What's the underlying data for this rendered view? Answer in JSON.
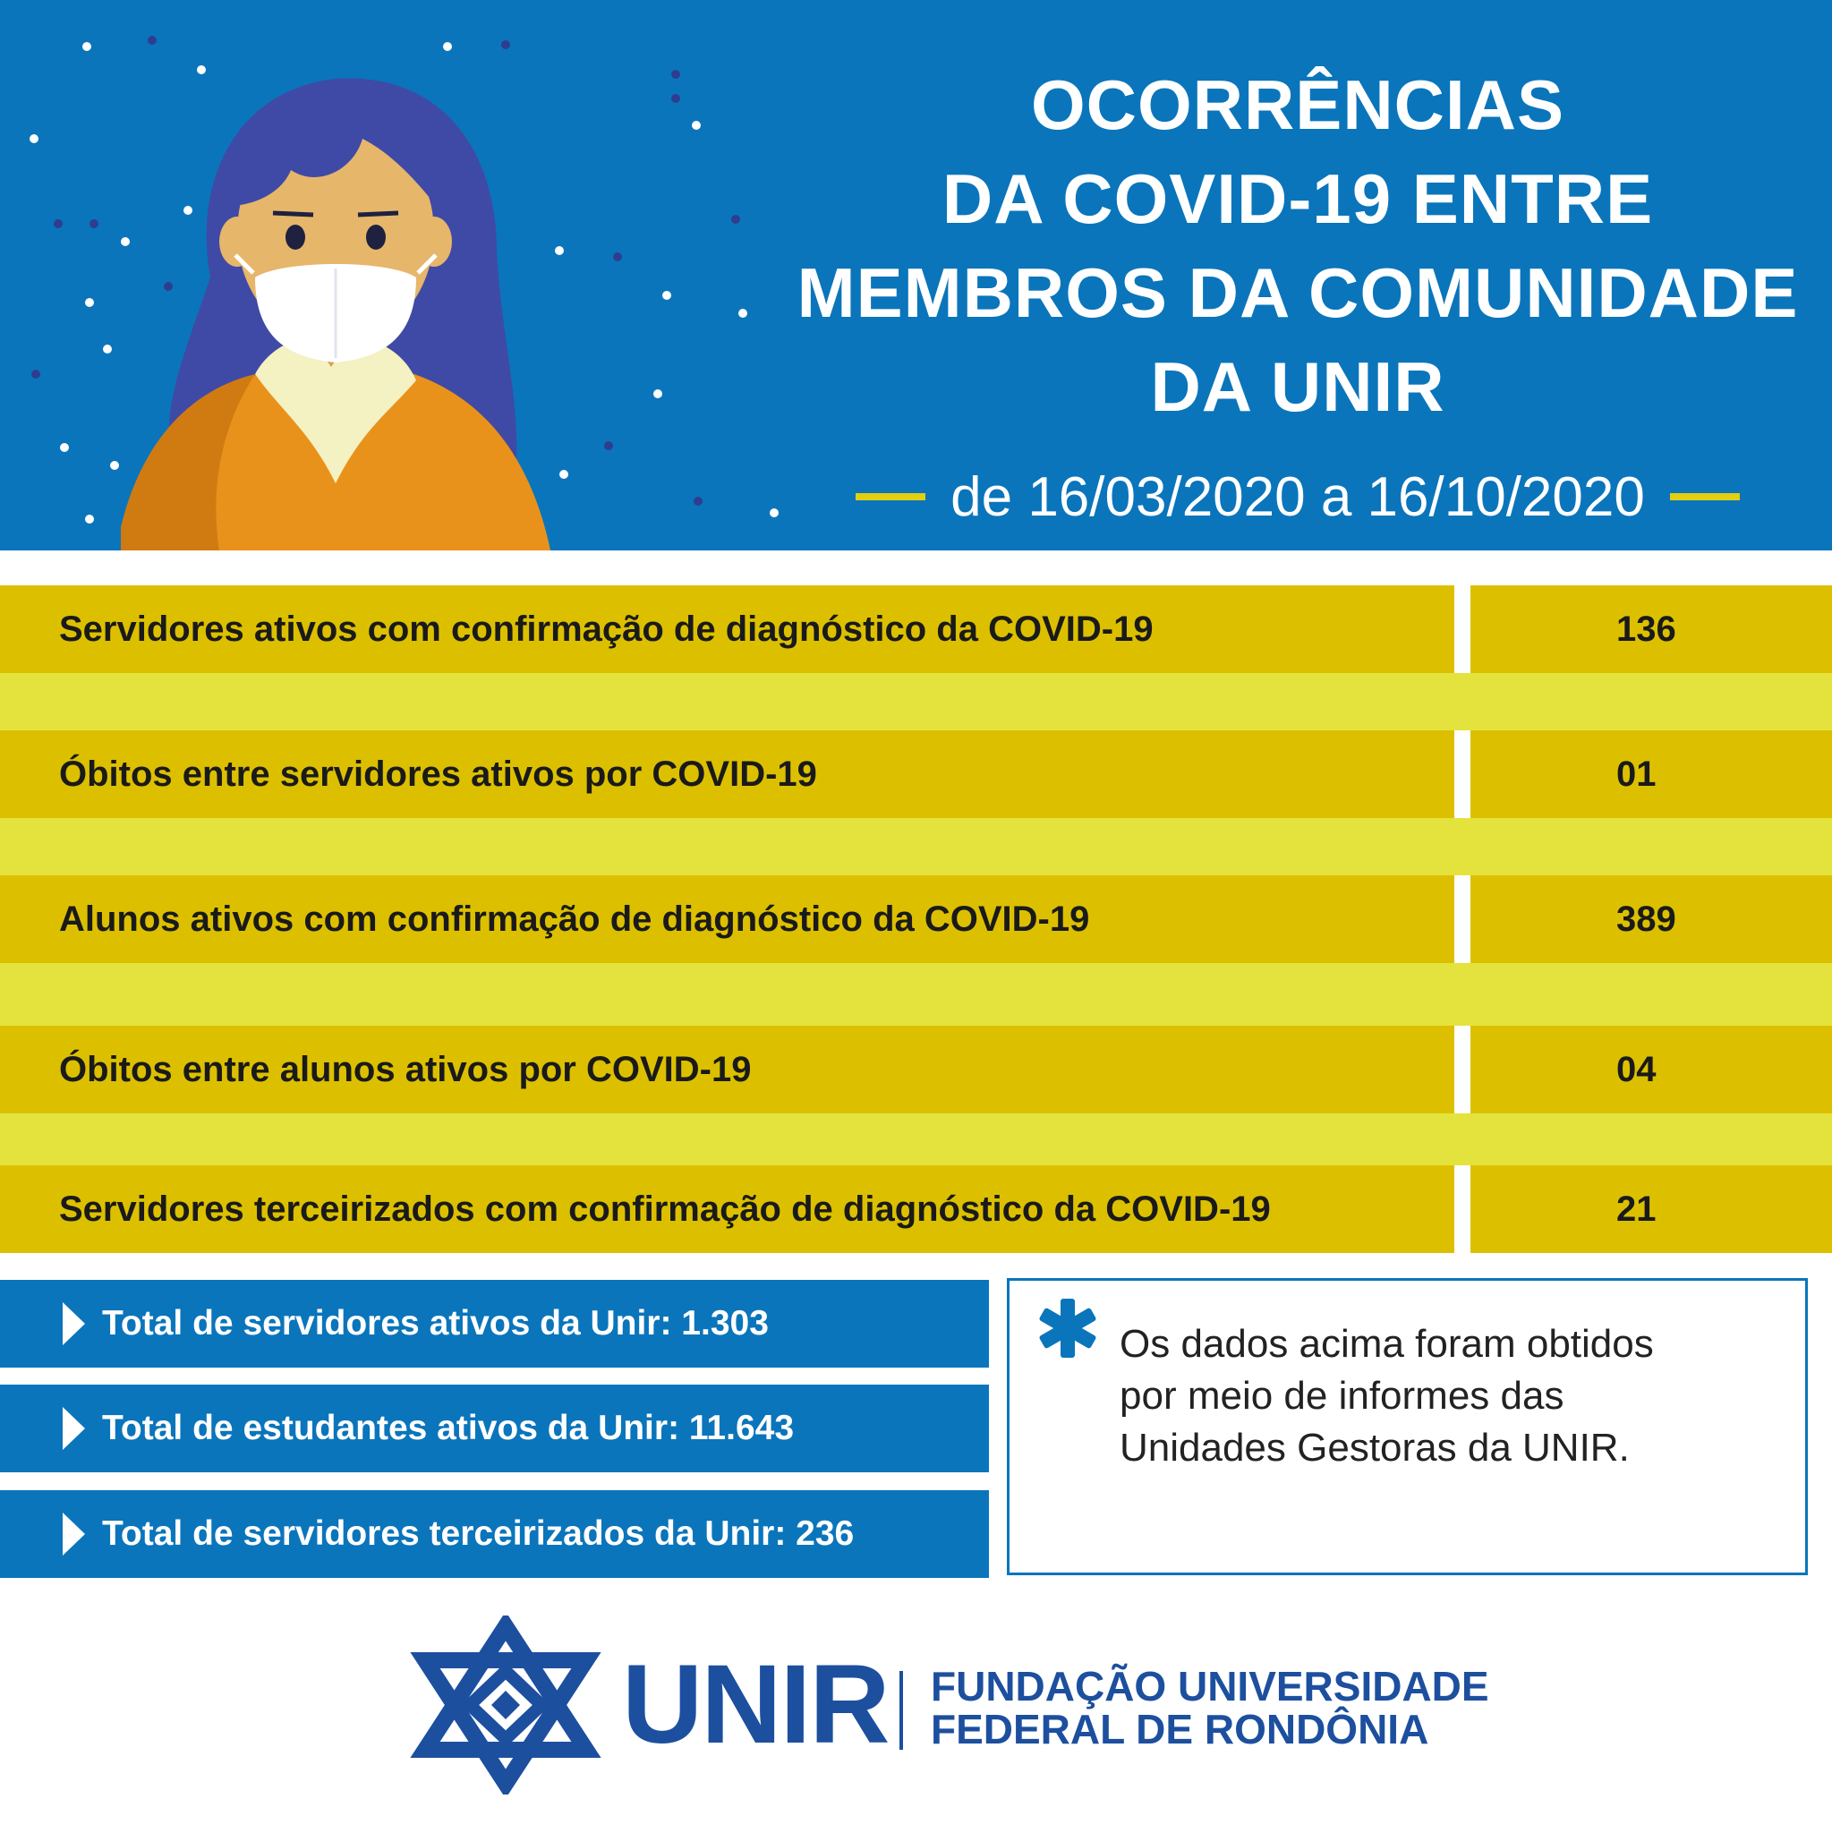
{
  "header": {
    "title_lines": [
      "OCORRÊNCIAS",
      "DA COVID-19 ENTRE",
      "MEMBROS DA COMUNIDADE",
      "DA UNIR"
    ],
    "date_range": "de 16/03/2020 a 16/10/2020",
    "illustration_icon": "woman-with-face-mask-icon"
  },
  "stats": [
    {
      "label": "Servidores ativos com confirmação de diagnóstico da COVID-19",
      "value": "136"
    },
    {
      "label": "Óbitos entre servidores ativos por COVID-19",
      "value": "01"
    },
    {
      "label": "Alunos ativos com confirmação de diagnóstico da COVID-19",
      "value": "389"
    },
    {
      "label": "Óbitos entre alunos ativos por COVID-19",
      "value": "04"
    },
    {
      "label": "Servidores terceirizados com confirmação de diagnóstico da COVID-19",
      "value": "21"
    }
  ],
  "totals": [
    {
      "text": "Total de servidores ativos da Unir: 1.303"
    },
    {
      "text": "Total de estudantes ativos da Unir: 11.643"
    },
    {
      "text": "Total de servidores terceirizados da Unir: 236"
    }
  ],
  "note": {
    "icon": "asterisk-icon",
    "lines": [
      "Os dados acima foram obtidos",
      "por meio de informes das",
      "Unidades Gestoras da UNIR."
    ]
  },
  "footer": {
    "logo_text": "UNIR",
    "subtitle_lines": [
      "FUNDAÇÃO UNIVERSIDADE",
      "FEDERAL DE RONDÔNIA"
    ],
    "logo_icon": "unir-star-logo-icon"
  },
  "colors": {
    "header_blue": "#0a75bb",
    "row_dark_yellow": "#dcc000",
    "row_light_yellow": "#e4e23d",
    "logo_blue": "#1d4f9f"
  }
}
